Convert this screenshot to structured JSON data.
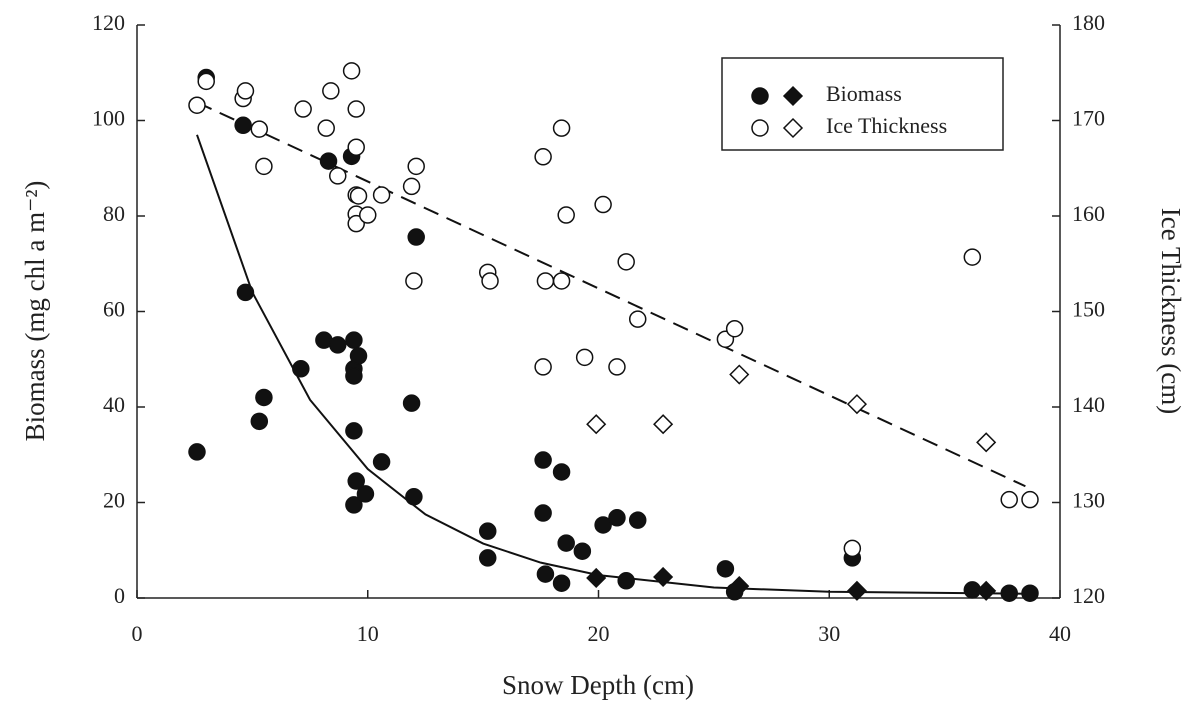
{
  "chart_data": {
    "type": "scatter",
    "x_label": "Snow Depth (cm)",
    "y_label": "Biomass (mg chl a m⁻²)",
    "y2_label": "Ice Thickness (cm)",
    "xlim": [
      0,
      40
    ],
    "xticks": [
      0,
      10,
      20,
      30,
      40
    ],
    "ylim": [
      0,
      120
    ],
    "yticks": [
      0,
      20,
      40,
      60,
      80,
      100,
      120
    ],
    "y2lim": [
      120,
      180
    ],
    "y2ticks": [
      120,
      130,
      140,
      150,
      160,
      170,
      180
    ],
    "legend": "top right",
    "series": [
      {
        "name": "Biomass",
        "color": "#111111",
        "filled": true,
        "axis": "y",
        "circles": {
          "x": [
            2.6,
            3.0,
            4.6,
            4.7,
            5.3,
            5.5,
            7.1,
            8.1,
            8.7,
            8.3,
            9.3,
            9.4,
            9.4,
            9.4,
            9.6,
            9.4,
            9.5,
            9.4,
            9.9,
            10.6,
            11.9,
            12.1,
            12.0,
            15.2,
            15.2,
            17.6,
            18.4,
            17.6,
            17.7,
            18.4,
            18.6,
            19.3,
            20.2,
            20.8,
            21.7,
            21.2,
            25.5,
            25.9,
            31.0,
            36.2,
            37.8,
            38.7
          ],
          "values": [
            30.6,
            109,
            99,
            64,
            37,
            42,
            48,
            54,
            53,
            91.5,
            92.5,
            54,
            48,
            46.5,
            50.7,
            35,
            24.5,
            19.5,
            21.8,
            28.5,
            40.8,
            75.6,
            21.2,
            14,
            8.4,
            28.9,
            26.4,
            17.8,
            5,
            3.1,
            11.5,
            9.8,
            15.3,
            16.8,
            16.3,
            3.6,
            6.1,
            1.3,
            8.4,
            1.7,
            1,
            1
          ]
        },
        "diamonds": {
          "x": [
            19.9,
            22.8,
            26.1,
            31.2,
            36.8
          ],
          "values": [
            4.2,
            4.4,
            2.5,
            1.5,
            1.5
          ]
        },
        "trend": {
          "dashed": false,
          "x": [
            2.6,
            5,
            7.5,
            10,
            12.5,
            15,
            17.5,
            20,
            25,
            30,
            38.5
          ],
          "values": [
            97,
            64,
            41.5,
            27,
            17.5,
            11.4,
            7.4,
            4.8,
            2.2,
            1.3,
            0.9
          ]
        }
      },
      {
        "name": "Ice Thickness",
        "color": "#111111",
        "filled": false,
        "axis": "y2",
        "circles": {
          "x": [
            2.6,
            3.0,
            4.6,
            4.7,
            5.3,
            5.5,
            7.2,
            8.4,
            8.2,
            8.7,
            9.3,
            9.5,
            9.5,
            9.5,
            9.6,
            9.5,
            9.5,
            10.0,
            10.6,
            11.9,
            12.1,
            12.0,
            15.2,
            15.3,
            17.6,
            18.4,
            17.7,
            18.4,
            17.6,
            18.6,
            19.4,
            20.2,
            20.8,
            21.2,
            21.7,
            25.5,
            25.9,
            31.0,
            36.2,
            37.8,
            38.7
          ],
          "values": [
            171.6,
            174.1,
            172.3,
            173.1,
            169.1,
            165.2,
            171.2,
            173.1,
            169.2,
            164.2,
            175.2,
            171.2,
            167.2,
            162.2,
            162.1,
            160.2,
            159.2,
            160.1,
            162.2,
            163.1,
            165.2,
            153.2,
            154.1,
            153.2,
            166.2,
            169.2,
            153.2,
            153.2,
            144.2,
            160.1,
            145.2,
            161.2,
            144.2,
            155.2,
            149.2,
            147.1,
            148.2,
            125.2,
            155.7,
            130.3,
            130.3
          ]
        },
        "diamonds": {
          "x": [
            19.9,
            22.8,
            26.1,
            31.2,
            36.8
          ],
          "values": [
            138.2,
            138.2,
            143.4,
            140.3,
            136.3
          ]
        },
        "trend": {
          "dashed": true,
          "x": [
            2.6,
            38.5
          ],
          "values": [
            171.9,
            131.7
          ]
        }
      }
    ]
  }
}
